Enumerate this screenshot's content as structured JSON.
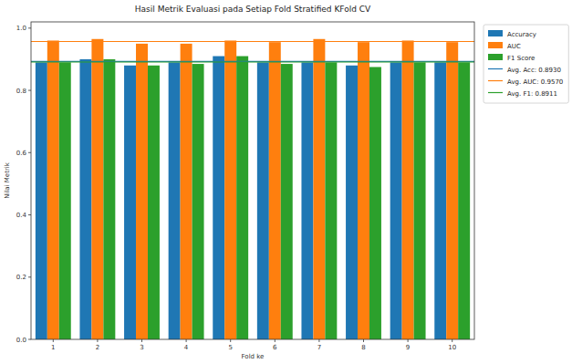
{
  "chart_data": {
    "type": "bar",
    "title": "Hasil Metrik Evaluasi pada Setiap Fold Stratified KFold CV",
    "x_label": "Fold ke",
    "y_label": "Nilai Metrik",
    "categories": [
      "1",
      "2",
      "3",
      "4",
      "5",
      "6",
      "7",
      "8",
      "9",
      "10"
    ],
    "series": [
      {
        "name": "Accuracy",
        "color": "#1f77b4",
        "values": [
          0.89,
          0.9,
          0.88,
          0.89,
          0.91,
          0.89,
          0.89,
          0.88,
          0.89,
          0.89
        ]
      },
      {
        "name": "AUC",
        "color": "#ff7f0e",
        "values": [
          0.96,
          0.965,
          0.95,
          0.95,
          0.96,
          0.955,
          0.965,
          0.955,
          0.96,
          0.955
        ]
      },
      {
        "name": "F1 Score",
        "color": "#2ca02c",
        "values": [
          0.89,
          0.9,
          0.88,
          0.885,
          0.91,
          0.885,
          0.89,
          0.875,
          0.89,
          0.89
        ]
      }
    ],
    "avg_lines": [
      {
        "label": "Avg. Acc: 0.8930",
        "value": 0.893,
        "color": "#1f77b4",
        "line_style": "solid"
      },
      {
        "label": "Avg. AUC: 0.9570",
        "value": 0.957,
        "color": "#ff7f0e",
        "line_style": "solid"
      },
      {
        "label": "Avg. F1: 0.8911",
        "value": 0.8911,
        "color": "#2ca02c",
        "line_style": "solid"
      }
    ],
    "ylim": [
      0,
      1.02
    ],
    "yticks": [
      {
        "value": 0,
        "label": "0.0"
      },
      {
        "value": 0.2,
        "label": "0.2"
      },
      {
        "value": 0.4,
        "label": "0.4"
      },
      {
        "value": 0.6,
        "label": "0.6"
      },
      {
        "value": 0.8,
        "label": "0.8"
      },
      {
        "value": 1.0,
        "label": "1.0"
      }
    ],
    "legend": "outside-right",
    "grid": false
  }
}
